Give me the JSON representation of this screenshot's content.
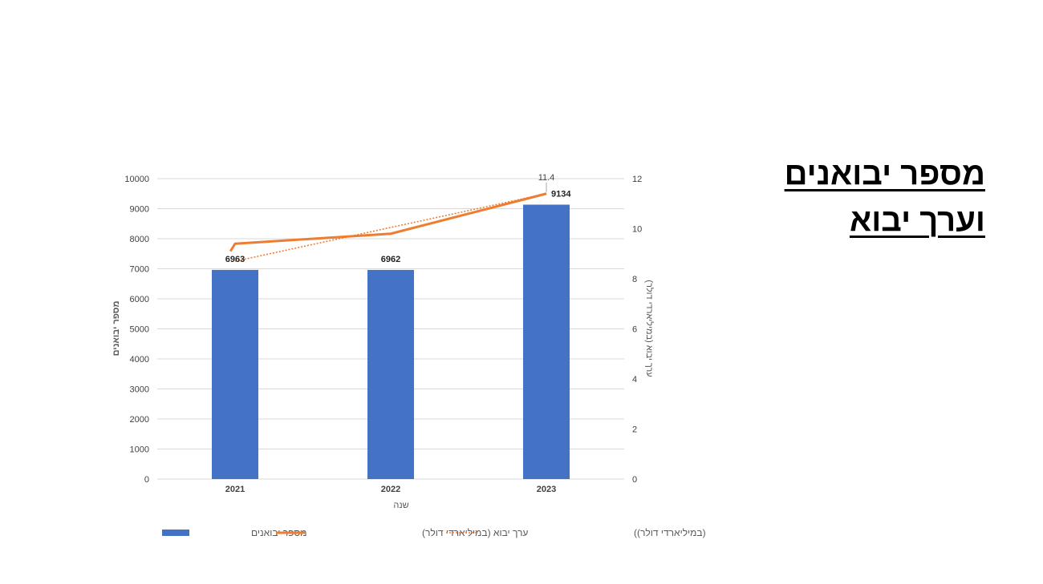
{
  "slide": {
    "title_line1": "מספר יבואנים",
    "title_line2": "וערך יבוא"
  },
  "chart_data": {
    "type": "bar",
    "categories": [
      "2021",
      "2022",
      "2023"
    ],
    "xlabel": "שנה",
    "ylabel": "מספר יבואנים",
    "y2label": "ערך יבוא (במיליארדי דולר)",
    "ylim": [
      0,
      10000
    ],
    "yticks": [
      0,
      1000,
      2000,
      3000,
      4000,
      5000,
      6000,
      7000,
      8000,
      9000,
      10000
    ],
    "y2lim": [
      0,
      12
    ],
    "y2ticks": [
      0,
      2,
      4,
      6,
      8,
      10,
      12
    ],
    "grid": true,
    "legend_position": "bottom",
    "series": [
      {
        "name": "מספר יבואנים",
        "kind": "bar",
        "axis": "left",
        "color": "#4472C4",
        "values": [
          6963,
          6962,
          9134
        ],
        "labels": [
          "6963",
          "6962",
          "9134"
        ]
      },
      {
        "name": "ערך יבוא (במיליארדי דולר)",
        "kind": "line",
        "axis": "right",
        "color": "#ED7D31",
        "points": [
          [
            2020.97,
            9.1
          ],
          [
            2021.0,
            9.4
          ],
          [
            2022.0,
            9.8
          ],
          [
            2023.0,
            11.4
          ]
        ],
        "labels": [
          "",
          "",
          "",
          "11.4"
        ]
      },
      {
        "name": "ליניארי (ערך יבוא (במיליארדי דולר))",
        "kind": "trendline",
        "axis": "right",
        "color": "#ED7D31",
        "values": [
          8.7,
          10.05,
          11.4
        ]
      }
    ]
  }
}
